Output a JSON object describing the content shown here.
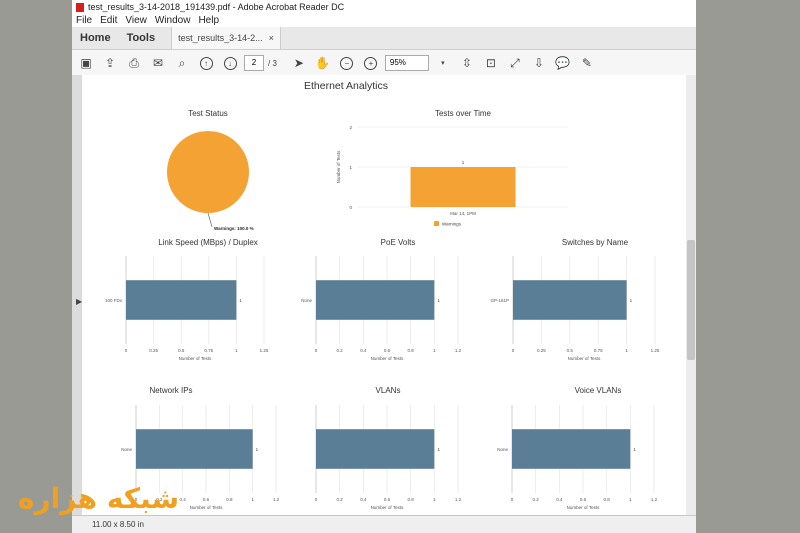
{
  "window": {
    "title": "test_results_3-14-2018_191439.pdf - Adobe Acrobat Reader DC",
    "menu": [
      "File",
      "Edit",
      "View",
      "Window",
      "Help"
    ],
    "home_tab": "Home",
    "tools_tab": "Tools",
    "doc_tab": "test_results_3-14-2...",
    "doc_tab_close": "×",
    "page_current": "2",
    "page_total": "/ 3",
    "zoom": "95%",
    "status_size": "11.00 x 8.50 in"
  },
  "report": {
    "title": "Ethernet Analytics"
  },
  "chart_data": [
    {
      "type": "pie",
      "title": "Test Status",
      "slices": [
        {
          "label": "Warnings: 100.0 %",
          "value": 100,
          "color": "#f5a234"
        }
      ]
    },
    {
      "type": "bar",
      "title": "Tests over Time",
      "categories": [
        "Mar 14, 1PM"
      ],
      "values": [
        1
      ],
      "ylabel": "Number of Tests",
      "ylim": [
        0,
        2
      ],
      "yticks": [
        "2",
        "1",
        "0"
      ],
      "legend": "Warnings",
      "color": "#f5a234"
    },
    {
      "type": "bar",
      "orientation": "horizontal",
      "title": "Link Speed (MBps) / Duplex",
      "categories": [
        "100 FDx"
      ],
      "values": [
        1
      ],
      "xlabel": "Number of Tests",
      "xlim": [
        0,
        1.25
      ],
      "xticks": [
        "0",
        "0.25",
        "0.5",
        "0.75",
        "1",
        "1.25"
      ],
      "color": "#5a7e96"
    },
    {
      "type": "bar",
      "orientation": "horizontal",
      "title": "PoE Volts",
      "categories": [
        "None"
      ],
      "values": [
        1
      ],
      "xlabel": "Number of Tests",
      "xlim": [
        0,
        1.2
      ],
      "xticks": [
        "0",
        "0.2",
        "0.4",
        "0.6",
        "0.8",
        "1",
        "1.2"
      ],
      "color": "#5a7e96"
    },
    {
      "type": "bar",
      "orientation": "horizontal",
      "title": "Switches by Name",
      "categories": [
        "GP-161P"
      ],
      "values": [
        1
      ],
      "xlabel": "Number of Tests",
      "xlim": [
        0,
        1.25
      ],
      "xticks": [
        "0",
        "0.25",
        "0.5",
        "0.75",
        "1",
        "1.25"
      ],
      "color": "#5a7e96"
    },
    {
      "type": "bar",
      "orientation": "horizontal",
      "title": "Network IPs",
      "categories": [
        "None"
      ],
      "values": [
        1
      ],
      "xlabel": "Number of Tests",
      "xlim": [
        0,
        1.2
      ],
      "xticks": [
        "0",
        "0.2",
        "0.4",
        "0.6",
        "0.8",
        "1",
        "1.2"
      ],
      "color": "#5a7e96"
    },
    {
      "type": "bar",
      "orientation": "horizontal",
      "title": "VLANs",
      "categories": [
        ""
      ],
      "values": [
        1
      ],
      "xlabel": "Number of Tests",
      "xlim": [
        0,
        1.2
      ],
      "xticks": [
        "0",
        "0.2",
        "0.4",
        "0.6",
        "0.8",
        "1",
        "1.2"
      ],
      "color": "#5a7e96"
    },
    {
      "type": "bar",
      "orientation": "horizontal",
      "title": "Voice VLANs",
      "categories": [
        "None"
      ],
      "values": [
        1
      ],
      "xlabel": "Number of Tests",
      "xlim": [
        0,
        1.2
      ],
      "xticks": [
        "0",
        "0.2",
        "0.4",
        "0.6",
        "0.8",
        "1",
        "1.2"
      ],
      "color": "#5a7e96"
    }
  ],
  "watermark": "شبکه هزاره"
}
